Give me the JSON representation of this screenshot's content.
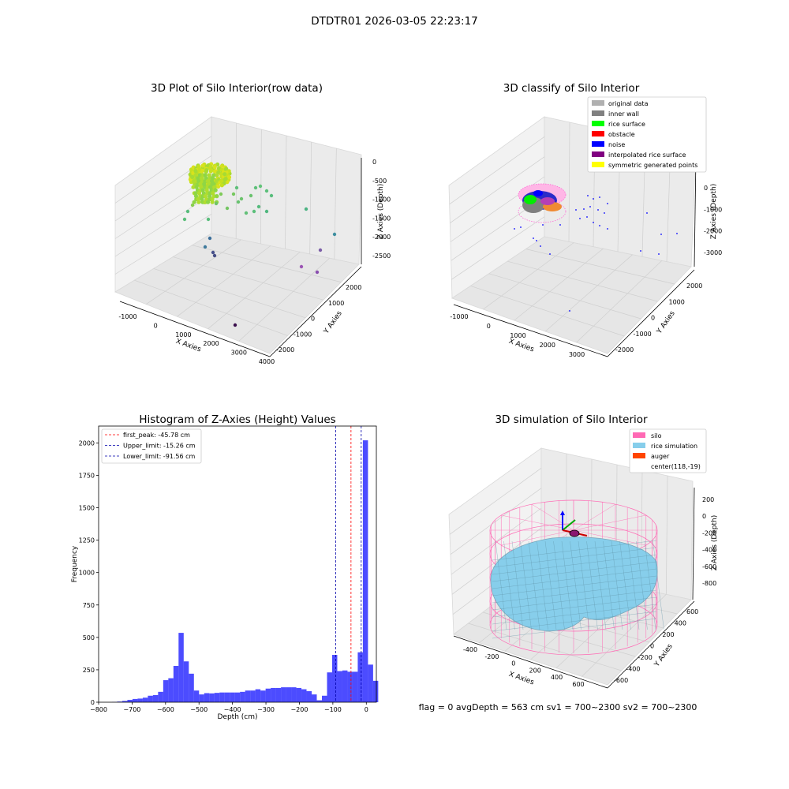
{
  "figure": {
    "suptitle": "DTDTR01 2026-03-05 22:23:17",
    "status_line": "flag = 0     avgDepth = 563 cm  sv1 = 700~2300  sv2 = 700~2300"
  },
  "chart_data": [
    {
      "type": "scatter",
      "title": "3D Plot of Silo Interior(row data)",
      "xlabel": "X Axies",
      "ylabel": "Y Axies",
      "zlabel": "Z Axies (Depth)",
      "x_ticks": [
        "-1000",
        "0",
        "1000",
        "2000",
        "3000",
        "4000"
      ],
      "y_ticks": [
        "-2000",
        "-1000",
        "0",
        "1000",
        "2000"
      ],
      "z_ticks": [
        "0",
        "-500",
        "-1000",
        "-1500",
        "-2000",
        "-2500"
      ],
      "grid": true
    },
    {
      "type": "scatter",
      "title": "3D classify of Silo Interior",
      "xlabel": "X Axies",
      "ylabel": "Y Axies",
      "zlabel": "Z Axies (Depth)",
      "x_ticks": [
        "-1000",
        "0",
        "1000",
        "2000",
        "3000"
      ],
      "y_ticks": [
        "-2000",
        "-1000",
        "0",
        "1000",
        "2000"
      ],
      "z_ticks": [
        "0",
        "-1000",
        "-2000",
        "-3000"
      ],
      "legend_position": "top-right",
      "legend": [
        {
          "label": "original data",
          "color": "#b0b0b0"
        },
        {
          "label": "inner wall",
          "color": "#808080"
        },
        {
          "label": "rice surface",
          "color": "#00ff00"
        },
        {
          "label": "obstacle",
          "color": "#ff0000"
        },
        {
          "label": "noise",
          "color": "#0000ff"
        },
        {
          "label": "interpolated rice surface",
          "color": "#800080"
        },
        {
          "label": "symmetric generated points",
          "color": "#ffff00"
        }
      ],
      "grid": true
    },
    {
      "type": "bar",
      "title": "Histogram of Z-Axies (Height) Values",
      "xlabel": "Depth (cm)",
      "ylabel": "Frequency",
      "xlim": [
        -800,
        30
      ],
      "ylim": [
        0,
        2130
      ],
      "x_ticks": [
        "−800",
        "−700",
        "−600",
        "−500",
        "−400",
        "−300",
        "−200",
        "−100",
        "0"
      ],
      "y_ticks": [
        "0",
        "250",
        "500",
        "750",
        "1000",
        "1250",
        "1500",
        "1750",
        "2000"
      ],
      "bar_color": "#0000ff",
      "bin_width": 15.3,
      "bin_start": -760,
      "values": [
        2,
        5,
        10,
        18,
        25,
        28,
        35,
        50,
        55,
        80,
        170,
        185,
        280,
        535,
        315,
        220,
        90,
        60,
        70,
        68,
        72,
        75,
        75,
        75,
        75,
        80,
        90,
        90,
        100,
        90,
        105,
        110,
        110,
        115,
        115,
        115,
        110,
        100,
        85,
        60,
        15,
        50,
        230,
        365,
        240,
        245,
        235,
        235,
        385,
        2020,
        290,
        165
      ],
      "vlines": [
        {
          "label": "first_peak: -45.78 cm",
          "x": -45.78,
          "color": "#ff0000"
        },
        {
          "label": "Upper_limit: -15.26 cm",
          "x": -15.26,
          "color": "#0000aa"
        },
        {
          "label": "Lower_limit: -91.56 cm",
          "x": -91.56,
          "color": "#0000aa"
        }
      ],
      "legend_position": "top-left",
      "grid": false
    },
    {
      "type": "scatter",
      "title": "3D simulation of Silo Interior",
      "xlabel": "X Axies",
      "ylabel": "Y Axies",
      "zlabel": "Z Axies (Depth)",
      "x_ticks": [
        "-400",
        "-200",
        "0",
        "200",
        "400",
        "600"
      ],
      "y_ticks": [
        "-600",
        "-400",
        "-200",
        "0",
        "200",
        "400",
        "600"
      ],
      "z_ticks": [
        "200",
        "0",
        "-200",
        "-400",
        "-600",
        "-800"
      ],
      "legend_position": "top-right",
      "legend": [
        {
          "label": "silo",
          "color": "#ff69b4"
        },
        {
          "label": "rice simulation",
          "color": "#87ceeb"
        },
        {
          "label": "auger",
          "color": "#ff4500"
        },
        {
          "label": "center(118,-19)",
          "color": ""
        }
      ],
      "grid": true
    }
  ]
}
